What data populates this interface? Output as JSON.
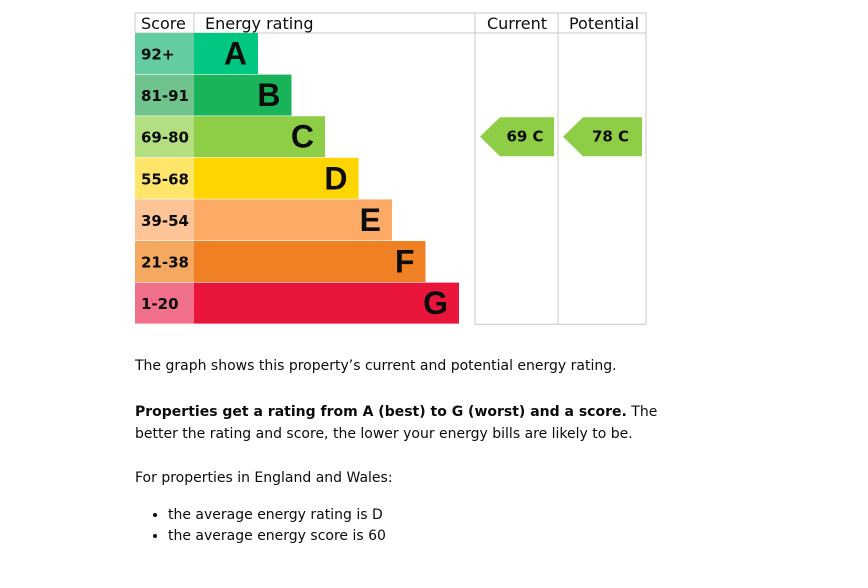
{
  "chart_data": {
    "type": "bar",
    "headers": {
      "score": "Score",
      "rating": "Energy rating",
      "current": "Current",
      "potential": "Potential"
    },
    "bands": [
      {
        "letter": "A",
        "range": "92+",
        "color": "#00c781",
        "score_bg": "#65cba1"
      },
      {
        "letter": "B",
        "range": "81-91",
        "color": "#19b459",
        "score_bg": "#6fc38d"
      },
      {
        "letter": "C",
        "range": "69-80",
        "color": "#8dce46",
        "score_bg": "#b4df80"
      },
      {
        "letter": "D",
        "range": "55-68",
        "color": "#ffd500",
        "score_bg": "#ffe66a"
      },
      {
        "letter": "E",
        "range": "39-54",
        "color": "#fcaa65",
        "score_bg": "#fdc597"
      },
      {
        "letter": "F",
        "range": "21-38",
        "color": "#ef8023",
        "score_bg": "#f5a85f"
      },
      {
        "letter": "G",
        "range": "1-20",
        "color": "#e9153b",
        "score_bg": "#f0708a"
      }
    ],
    "current": {
      "score": 69,
      "band": "C",
      "label": "69 C"
    },
    "potential": {
      "score": 78,
      "band": "C",
      "label": "78 C"
    }
  },
  "text": {
    "intro": "The graph shows this property’s current and potential energy rating.",
    "ratings_bold": "Properties get a rating from A (best) to G (worst) and a score.",
    "ratings_rest": " The better the rating and score, the lower your energy bills are likely to be.",
    "england": "For properties in England and Wales:",
    "bullets": [
      "the average energy rating is D",
      "the average energy score is 60"
    ]
  }
}
